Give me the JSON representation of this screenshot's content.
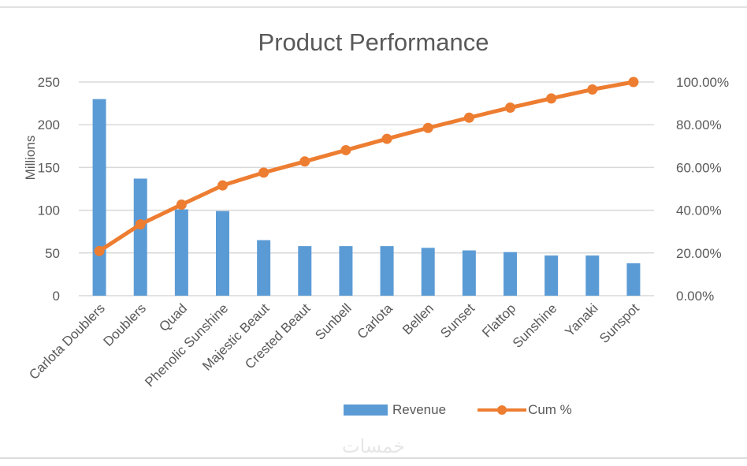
{
  "chart_data": {
    "type": "bar+line",
    "title": "Product Performance",
    "categories": [
      "Carlota Doublers",
      "Doublers",
      "Quad",
      "Phenolic Sunshine",
      "Majestic Beaut",
      "Crested Beaut",
      "Sunbell",
      "Carlota",
      "Bellen",
      "Sunset",
      "Flattop",
      "Sunshine",
      "Yanaki",
      "Sunspot"
    ],
    "series": [
      {
        "name": "Revenue",
        "type": "bar",
        "axis": "left",
        "color": "#5B9BD5",
        "values": [
          230,
          137,
          101,
          99,
          65,
          58,
          58,
          58,
          56,
          53,
          51,
          47,
          47,
          38
        ]
      },
      {
        "name": "Cum %",
        "type": "line",
        "axis": "right",
        "color": "#ED7D31",
        "values": [
          20.9,
          33.4,
          42.6,
          51.6,
          57.6,
          62.8,
          68.1,
          73.4,
          78.5,
          83.3,
          88.0,
          92.3,
          96.5,
          100.0
        ]
      }
    ],
    "xlabel": "",
    "ylabel": "Millions",
    "ylim": [
      0,
      250
    ],
    "yticks": [
      "0",
      "50",
      "100",
      "150",
      "200",
      "250"
    ],
    "y2lim": [
      0,
      100
    ],
    "y2ticks": [
      "0.00%",
      "20.00%",
      "40.00%",
      "60.00%",
      "80.00%",
      "100.00%"
    ],
    "grid": true,
    "legend_position": "bottom"
  },
  "legend": {
    "revenue": "Revenue",
    "cum": "Cum %"
  },
  "watermark": "خمسات"
}
